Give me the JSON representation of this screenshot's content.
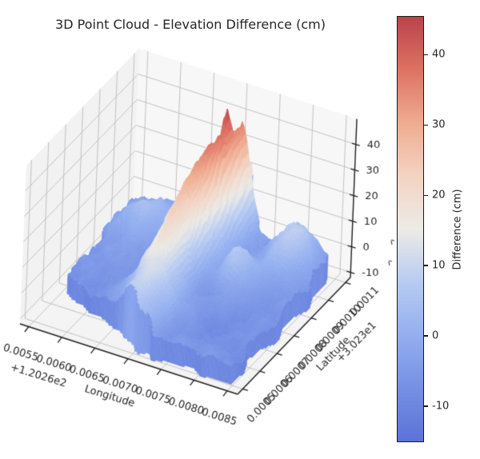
{
  "title": "3D Point Cloud - Elevation Difference (cm)",
  "colorbar": {
    "label": "Difference (cm)",
    "ticks": [
      40,
      30,
      20,
      10,
      0,
      -10
    ],
    "vmin": -15.1,
    "vmax": 45.5,
    "stops": [
      [
        0.0,
        "#5b73d8"
      ],
      [
        0.125,
        "#7590e4"
      ],
      [
        0.25,
        "#93aff0"
      ],
      [
        0.375,
        "#b8cbf2"
      ],
      [
        0.5,
        "#edebe6"
      ],
      [
        0.625,
        "#f3d3c2"
      ],
      [
        0.75,
        "#f0ab90"
      ],
      [
        0.875,
        "#dd7263"
      ],
      [
        1.0,
        "#bc4249"
      ]
    ]
  },
  "chart_data": {
    "type": "surface3d-pointcloud",
    "title": "3D Point Cloud - Elevation Difference (cm)",
    "x_axis": {
      "label": "Longitude",
      "offset_text": "+1.2026e2",
      "ticks": [
        "0.0055",
        "0.0060",
        "0.0065",
        "0.0070",
        "0.0075",
        "0.0080",
        "0.0085"
      ],
      "approx_range": [
        120.2653,
        120.2687
      ]
    },
    "y_axis": {
      "label": "Latitude",
      "offset_text": "+3.023e1",
      "ticks": [
        "0.0005",
        "0.0006",
        "0.0007",
        "0.0008",
        "0.0009",
        "0.0010",
        "0.0011"
      ],
      "approx_range": [
        30.23045,
        30.23115
      ]
    },
    "z_axis": {
      "ticks": [
        "-10",
        "0",
        "10",
        "20",
        "30",
        "40"
      ],
      "tick_values": [
        -10,
        0,
        10,
        20,
        30,
        40
      ],
      "box_range": [
        -12,
        50
      ],
      "data_range_cm": [
        -14,
        47
      ]
    },
    "colormap": {
      "name": "coolwarm",
      "vmin": -15.1,
      "vmax": 45.5,
      "stops": [
        [
          0.0,
          "#5b73d8"
        ],
        [
          0.125,
          "#7590e4"
        ],
        [
          0.25,
          "#93aff0"
        ],
        [
          0.375,
          "#b8cbf2"
        ],
        [
          0.5,
          "#edebe6"
        ],
        [
          0.625,
          "#f3d3c2"
        ],
        [
          0.75,
          "#f0ab90"
        ],
        [
          0.875,
          "#dd7263"
        ],
        [
          1.0,
          "#bc4249"
        ]
      ]
    },
    "surface": {
      "description": "Jagged elevation-difference heightfield: main red ridge at nearly constant longitude ~120.2668 running along latitude, sharp dark-red spike (~47cm) near its back end, pale-orange secondary mounds right-of-center, rolling blue terrain (~-12..5cm) elsewhere; scattered data footprint leaves bare floor near front-left corner.",
      "base": {
        "level": -5.5,
        "amp_broad": 3.8,
        "amp_mid": 2.2
      },
      "ridge": {
        "u0": 0.435,
        "dudv": 0.05,
        "wiggle": 0.02,
        "width": 0.055,
        "amp_min": 12,
        "amp_max": 43
      },
      "spike": {
        "u": 0.468,
        "v": 0.873,
        "amp": 14,
        "su": 0.011,
        "sv": 0.028
      },
      "bumps": [
        {
          "u": 0.8,
          "v": 0.86,
          "amp": 17,
          "su": 0.07,
          "sv": 0.115
        },
        {
          "u": 0.67,
          "v": 0.62,
          "amp": 14,
          "su": 0.05,
          "sv": 0.065
        },
        {
          "u": 0.16,
          "v": 0.8,
          "amp": 9,
          "su": 0.095,
          "sv": 0.14
        }
      ],
      "rough": {
        "amp_fine": 1.6,
        "amp_very_fine": 0.9,
        "height_gain": 0.05
      },
      "z_cap": 47.5,
      "z_skirt": -13.5,
      "grid_nu": 116,
      "grid_nv": 78
    },
    "view": {
      "A": [
        25,
        405
      ],
      "ex": [
        272,
        88
      ],
      "ey": [
        141,
        -146
      ],
      "hx": 0.13,
      "hz": 3.2,
      "zmin": -12,
      "zmax": 50,
      "x_tick_u": [
        0.04,
        0.192,
        0.344,
        0.496,
        0.648,
        0.8,
        0.952
      ],
      "y_tick_v": [
        0.045,
        0.197,
        0.349,
        0.501,
        0.653,
        0.805,
        0.957
      ],
      "x_label_angle_deg": 17,
      "y_label_angle_deg": -46,
      "colors": {
        "pane_left": "#f2f2f2",
        "pane_right": "#f7f7f7",
        "pane_floor": "#f4f4f4",
        "grid": "#bcbcbc",
        "spine": "#1f1f1f",
        "text": "#262626"
      },
      "occluded_z_label_fragments": [
        [
          489,
          300
        ],
        [
          486,
          326
        ]
      ]
    },
    "legend": "none",
    "grid": true
  }
}
